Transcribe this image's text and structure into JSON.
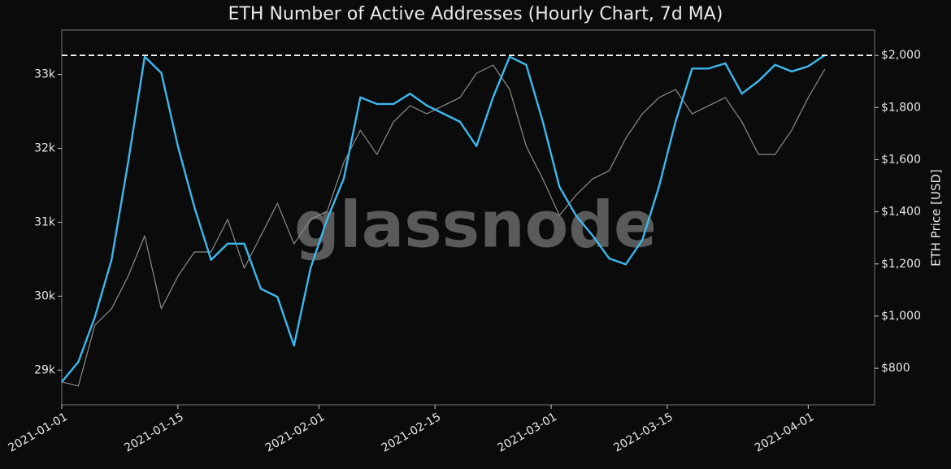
{
  "chart_data": {
    "type": "line",
    "title": "ETH Number of Active Addresses (Hourly Chart, 7d MA)",
    "watermark": "glassnode",
    "y2_label": "ETH Price [USD]",
    "x": [
      "2021-01-01",
      "2021-01-03",
      "2021-01-05",
      "2021-01-07",
      "2021-01-09",
      "2021-01-11",
      "2021-01-13",
      "2021-01-15",
      "2021-01-17",
      "2021-01-19",
      "2021-01-21",
      "2021-01-23",
      "2021-01-25",
      "2021-01-27",
      "2021-01-29",
      "2021-01-31",
      "2021-02-02",
      "2021-02-04",
      "2021-02-06",
      "2021-02-08",
      "2021-02-10",
      "2021-02-12",
      "2021-02-14",
      "2021-02-16",
      "2021-02-18",
      "2021-02-20",
      "2021-02-22",
      "2021-02-24",
      "2021-02-26",
      "2021-02-28",
      "2021-03-02",
      "2021-03-04",
      "2021-03-06",
      "2021-03-08",
      "2021-03-10",
      "2021-03-12",
      "2021-03-14",
      "2021-03-16",
      "2021-03-18",
      "2021-03-20",
      "2021-03-22",
      "2021-03-24",
      "2021-03-26",
      "2021-03-28",
      "2021-03-30",
      "2021-04-01",
      "2021-04-03"
    ],
    "series": [
      {
        "color": "#3db8ec",
        "axis": "y",
        "values": [
          28840,
          29110,
          29720,
          30490,
          31810,
          33240,
          33020,
          32030,
          31200,
          30490,
          30710,
          30710,
          30100,
          29990,
          29330,
          30380,
          31040,
          31590,
          32690,
          32600,
          32600,
          32740,
          32580,
          32470,
          32360,
          32030,
          32690,
          33240,
          33130,
          32360,
          31480,
          31090,
          30820,
          30510,
          30430,
          30760,
          31480,
          32360,
          33080,
          33080,
          33150,
          32740,
          32910,
          33130,
          33040,
          33110,
          33260
        ]
      },
      {
        "color": "#8c8c8c",
        "axis": "y2",
        "values": [
          748,
          732,
          966,
          1028,
          1153,
          1308,
          1028,
          1153,
          1246,
          1246,
          1371,
          1184,
          1308,
          1433,
          1277,
          1371,
          1402,
          1589,
          1713,
          1620,
          1745,
          1807,
          1776,
          1807,
          1838,
          1931,
          1963,
          1869,
          1651,
          1526,
          1386,
          1464,
          1526,
          1558,
          1682,
          1776,
          1838,
          1869,
          1776,
          1807,
          1838,
          1745,
          1620,
          1620,
          1713,
          1838,
          1947
        ]
      }
    ],
    "reference_line": {
      "value": 2000,
      "axis": "y2"
    },
    "xlim": [
      "2021-01-01",
      "2021-04-09"
    ],
    "xticks": [
      "2021-01-01",
      "2021-01-15",
      "2021-02-01",
      "2021-02-15",
      "2021-03-01",
      "2021-03-15",
      "2021-04-01"
    ],
    "ylim": [
      28530,
      33600
    ],
    "yticks": [
      {
        "value": 29000,
        "label": "29k"
      },
      {
        "value": 30000,
        "label": "30k"
      },
      {
        "value": 31000,
        "label": "31k"
      },
      {
        "value": 32000,
        "label": "32k"
      },
      {
        "value": 33000,
        "label": "33k"
      }
    ],
    "y2lim": [
      660,
      2097
    ],
    "y2ticks": [
      {
        "value": 800,
        "label": "$800"
      },
      {
        "value": 1000,
        "label": "$1,000"
      },
      {
        "value": 1200,
        "label": "$1,200"
      },
      {
        "value": 1400,
        "label": "$1,400"
      },
      {
        "value": 1600,
        "label": "$1,600"
      },
      {
        "value": 1800,
        "label": "$1,800"
      },
      {
        "value": 2000,
        "label": "$2,000"
      }
    ]
  }
}
